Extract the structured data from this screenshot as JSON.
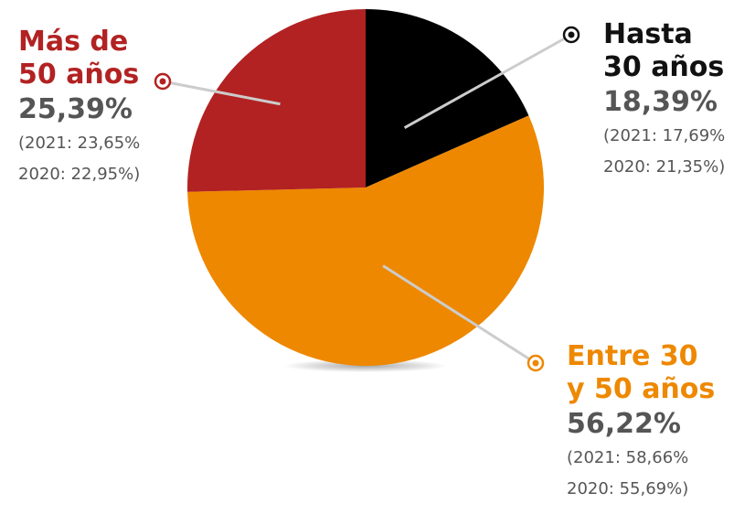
{
  "chart_data": {
    "type": "pie",
    "slices": [
      {
        "name_line1": "Hasta",
        "name_line2": "30 años",
        "value": 18.39,
        "value_label": "18,39%",
        "prev_2021": "(2021: 17,69%",
        "prev_2020": "2020: 21,35%)",
        "color": "#000000",
        "label_color": "#111111"
      },
      {
        "name_line1": "Entre 30",
        "name_line2": "y 50 años",
        "value": 56.22,
        "value_label": "56,22%",
        "prev_2021": "(2021: 58,66%",
        "prev_2020": "2020: 55,69%)",
        "color": "#EE8800",
        "label_color": "#EE8800"
      },
      {
        "name_line1": "Más de",
        "name_line2": "50 años",
        "value": 25.39,
        "value_label": "25,39%",
        "prev_2021": "(2021: 23,65%",
        "prev_2020": "2020: 22,95%)",
        "color": "#B22222",
        "label_color": "#B22222"
      }
    ]
  }
}
